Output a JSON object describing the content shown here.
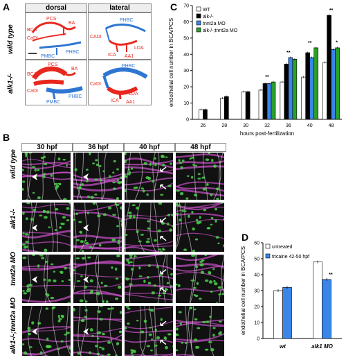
{
  "panel_labels": {
    "a": "A",
    "b": "B",
    "c": "C",
    "d": "D"
  },
  "panelA": {
    "col_headers": [
      "dorsal",
      "lateral"
    ],
    "row_labels": [
      "wild type",
      "alk1-/-"
    ],
    "wt_dorsal": [
      "PCS",
      "BA",
      "BCA",
      "CaDI",
      "PMBC",
      "PHBC"
    ],
    "wt_lateral": [
      "PHBC",
      "CADI",
      "LDA",
      "ICA",
      "AA1"
    ],
    "mut_dorsal": [
      "PCS",
      "BA",
      "BCA",
      "CaDI",
      "PHBC",
      "PMBC"
    ],
    "mut_lateral": [
      "PHBC",
      "CaDI",
      "LDA",
      "ICA",
      "AA1"
    ],
    "colors": {
      "artery": "#e8281e",
      "vein": "#2f76d2"
    }
  },
  "panelB": {
    "col_headers": [
      "30 hpf",
      "36 hpf",
      "40 hpf",
      "48 hpf"
    ],
    "row_labels": [
      "wild type",
      "alk1-/-",
      "tnnt2a MO",
      "alk1-/-;tnnt2a MO"
    ]
  },
  "chart_data": [
    {
      "type": "bar",
      "panel": "C",
      "title": "",
      "xlabel": "hours post-fertilization",
      "ylabel": "endothelial cell number in BCA/PCS",
      "ylim": [
        0,
        70
      ],
      "yticks": [
        0,
        10,
        20,
        30,
        40,
        50,
        60,
        70
      ],
      "categories": [
        "26",
        "28",
        "30",
        "32",
        "36",
        "40",
        "48"
      ],
      "series": [
        {
          "name": "WT",
          "color": "#ffffff",
          "values": [
            6,
            13,
            17,
            18,
            23,
            26,
            35
          ]
        },
        {
          "name": "alk-/-",
          "color": "#000000",
          "values": [
            6,
            14,
            17,
            22,
            34,
            41,
            64
          ]
        },
        {
          "name": "tnnt2a MO",
          "color": "#3a86e8",
          "values": [
            null,
            null,
            null,
            22,
            38,
            38,
            43
          ]
        },
        {
          "name": "alk-/-;tnnt2a MO",
          "color": "#2aa02a",
          "values": [
            null,
            null,
            null,
            23,
            37,
            44,
            44
          ]
        }
      ],
      "annotations": [
        {
          "category": "32",
          "text": "**"
        },
        {
          "category": "36",
          "text": "**"
        },
        {
          "category": "40",
          "text": "**"
        },
        {
          "category": "48",
          "text": "**"
        },
        {
          "category": "48",
          "text": "*"
        }
      ],
      "legend": "top-left"
    },
    {
      "type": "bar",
      "panel": "D",
      "title": "",
      "xlabel": "",
      "ylabel": "endothelial cell number in BCA/PCS",
      "ylim": [
        0,
        60
      ],
      "yticks": [
        0,
        10,
        20,
        30,
        40,
        50,
        60
      ],
      "categories": [
        "wt",
        "alk1 MO"
      ],
      "series": [
        {
          "name": "untreated",
          "color": "#ffffff",
          "values": [
            30,
            48
          ]
        },
        {
          "name": "tricaine 42-50 hpf",
          "color": "#3a86e8",
          "values": [
            32,
            37
          ]
        }
      ],
      "annotations": [
        {
          "category": "alk1 MO",
          "text": "**"
        }
      ],
      "legend": "top-left"
    }
  ]
}
